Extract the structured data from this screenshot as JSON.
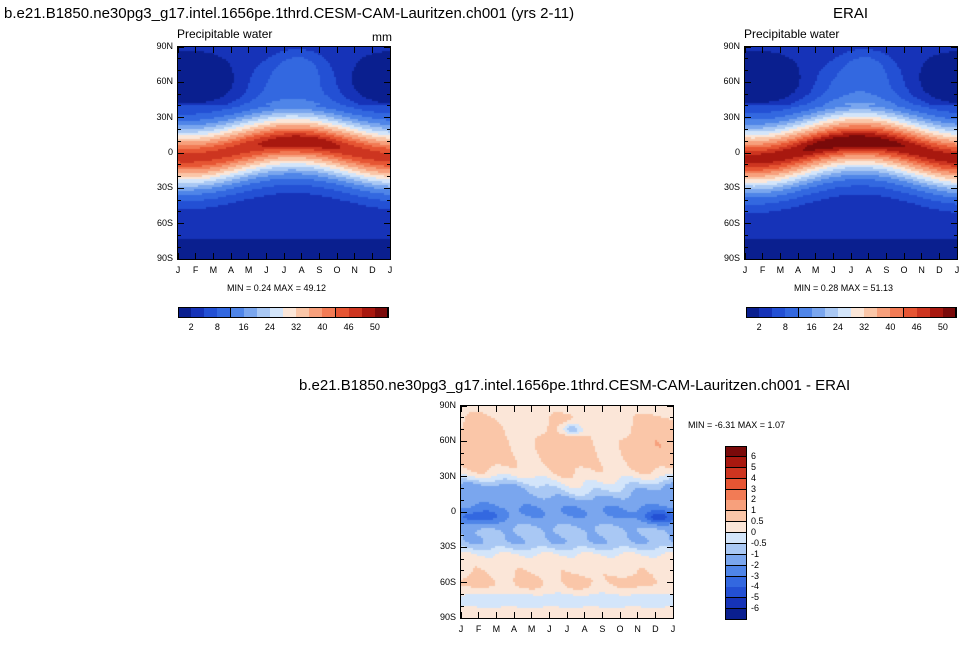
{
  "figure": {
    "panel_a_title": "b.e21.B1850.ne30pg3_g17.intel.1656pe.1thrd.CESM-CAM-Lauritzen.ch001 (yrs 2-11)",
    "panel_b_title": "ERAI",
    "panel_c_title": "b.e21.B1850.ne30pg3_g17.intel.1656pe.1thrd.CESM-CAM-Lauritzen.ch001 - ERAI"
  },
  "palettes": {
    "absolute": [
      "#0a1f8f",
      "#1633b8",
      "#2350d4",
      "#3368e0",
      "#4f85e8",
      "#7aa6ee",
      "#a9c8f4",
      "#d3e5fa",
      "#fbe6d8",
      "#fac6a8",
      "#f7a07c",
      "#f27b55",
      "#e65533",
      "#cd3520",
      "#a8180f",
      "#7a0a0a"
    ],
    "difference": [
      "#0a1f8f",
      "#1633b8",
      "#2350d4",
      "#3368e0",
      "#4f85e8",
      "#7aa6ee",
      "#a9c8f4",
      "#d3e5fa",
      "#fbe6d8",
      "#fac6a8",
      "#f7a07c",
      "#f27b55",
      "#e65533",
      "#cd3520",
      "#a8180f",
      "#7a0a0a"
    ]
  },
  "chart_data": [
    {
      "type": "heatmap",
      "id": "model",
      "title": "b.e21.B1850.ne30pg3_g17.intel.1656pe.1thrd.CESM-CAM-Lauritzen.ch001 (yrs 2-11)",
      "subtitle": "Precipitable water",
      "units": "mm",
      "x_tick_labels": [
        "J",
        "F",
        "M",
        "A",
        "M",
        "J",
        "J",
        "A",
        "S",
        "O",
        "N",
        "D",
        "J"
      ],
      "y_tick_labels": [
        "90N",
        "60N",
        "30N",
        "0",
        "30S",
        "60S",
        "90S"
      ],
      "ylim": [
        -90,
        90
      ],
      "minmax_text": "MIN =   0.24 MAX =  49.12",
      "min": 0.24,
      "max": 49.12,
      "contour_levels": [
        2,
        5,
        8,
        12,
        16,
        20,
        24,
        28,
        32,
        36,
        40,
        43,
        46,
        48,
        50
      ],
      "legend_labels": [
        "2",
        "8",
        "16",
        "24",
        "32",
        "40",
        "46",
        "50"
      ],
      "peak_lat_at_jul": 10,
      "peak_value": 49
    },
    {
      "type": "heatmap",
      "id": "obs",
      "title": "ERAI",
      "subtitle": "Precipitable water",
      "x_tick_labels": [
        "J",
        "F",
        "M",
        "A",
        "M",
        "J",
        "J",
        "A",
        "S",
        "O",
        "N",
        "D",
        "J"
      ],
      "y_tick_labels": [
        "90N",
        "60N",
        "30N",
        "0",
        "30S",
        "60S",
        "90S"
      ],
      "ylim": [
        -90,
        90
      ],
      "minmax_text": "MIN =   0.28 MAX =  51.13",
      "min": 0.28,
      "max": 51.13,
      "contour_levels": [
        2,
        5,
        8,
        12,
        16,
        20,
        24,
        28,
        32,
        36,
        40,
        43,
        46,
        48,
        50
      ],
      "legend_labels": [
        "2",
        "8",
        "16",
        "24",
        "32",
        "40",
        "46",
        "50"
      ],
      "peak_value": 51
    },
    {
      "type": "heatmap",
      "id": "diff",
      "title": "b.e21.B1850.ne30pg3_g17.intel.1656pe.1thrd.CESM-CAM-Lauritzen.ch001 - ERAI",
      "x_tick_labels": [
        "J",
        "F",
        "M",
        "A",
        "M",
        "J",
        "J",
        "A",
        "S",
        "O",
        "N",
        "D",
        "J"
      ],
      "y_tick_labels": [
        "90N",
        "60N",
        "30N",
        "0",
        "30S",
        "60S",
        "90S"
      ],
      "ylim": [
        -90,
        90
      ],
      "minmax_text": "MIN =  -6.31 MAX =   1.07",
      "min": -6.31,
      "max": 1.07,
      "contour_levels": [
        -6,
        -5,
        -4,
        -3,
        -2,
        -1,
        -0.5,
        0,
        0.5,
        1,
        2,
        3,
        4,
        5,
        6
      ],
      "legend_labels": [
        "6",
        "5",
        "4",
        "3",
        "2",
        "1",
        "0.5",
        "0",
        "-0.5",
        "-1",
        "-2",
        "-3",
        "-4",
        "-5",
        "-6"
      ]
    }
  ]
}
